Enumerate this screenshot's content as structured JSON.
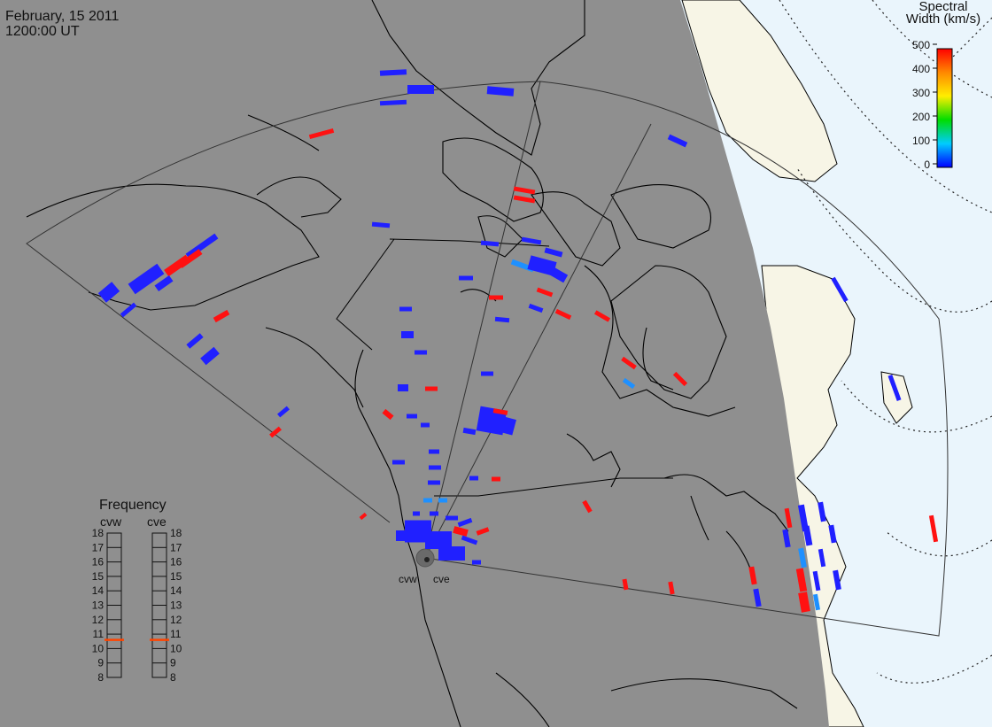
{
  "header": {
    "date": "February, 15 2011",
    "time": "1200:00 UT"
  },
  "colorbar": {
    "title_line1": "Spectral",
    "title_line2": "Width (km/s)",
    "ticks": [
      "500",
      "400",
      "300",
      "200",
      "100",
      "0"
    ],
    "colors": [
      "#0000ff",
      "#00ccff",
      "#00ff00",
      "#ffff00",
      "#ff8800",
      "#ff0000"
    ]
  },
  "radars": {
    "west_label": "cvw",
    "east_label": "cve"
  },
  "frequency_panel": {
    "title": "Frequency",
    "cvw_label": "cvw",
    "cve_label": "cve",
    "levels": [
      "18",
      "17",
      "16",
      "15",
      "14",
      "13",
      "12",
      "11",
      "10",
      "9",
      "8"
    ],
    "cvw_mhz": 10.6,
    "cve_mhz": 10.6,
    "marker_color": "#ff4400"
  },
  "colors": {
    "night": "#8f8f8f",
    "day_land": "#f7f5e6",
    "day_ocean": "#eaf5fc",
    "scatter_low": "#2020ff",
    "scatter_high": "#ff1111",
    "scatter_mid": "#1e90ff"
  }
}
